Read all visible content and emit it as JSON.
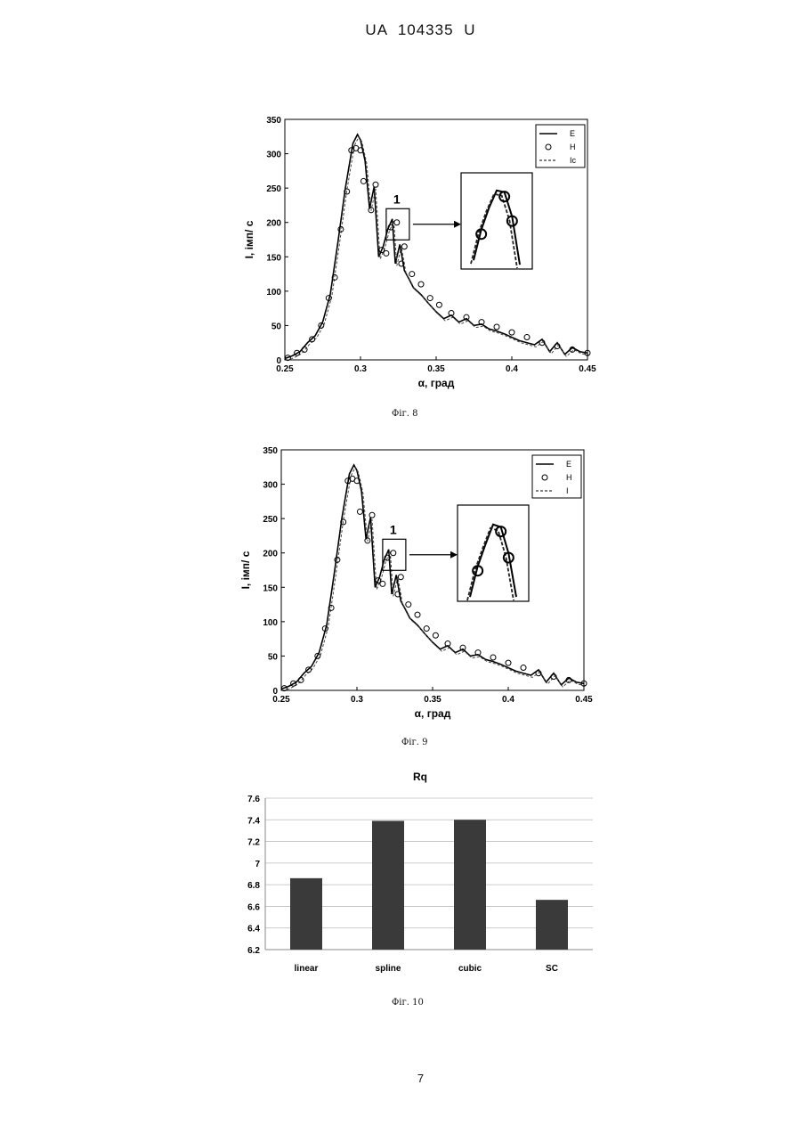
{
  "header": "UA   104335   U",
  "page_number": "7",
  "figures": [
    {
      "caption": "Фіг. 8",
      "chart_data": {
        "type": "line",
        "xlabel": "α, град",
        "ylabel": "I, імп/ с",
        "xlim": [
          0.25,
          0.45
        ],
        "ylim": [
          0,
          350
        ],
        "xticks": [
          "0.25",
          "0.3",
          "0.35",
          "0.4",
          "0.45"
        ],
        "yticks": [
          "0",
          "50",
          "100",
          "150",
          "200",
          "250",
          "300",
          "350"
        ],
        "legend": {
          "position": "top-right",
          "entries": [
            "E",
            "H",
            "Ic"
          ]
        },
        "annotation": "1",
        "series": [
          {
            "name": "E",
            "style": "solid",
            "x": [
              0.25,
              0.255,
              0.26,
              0.265,
              0.27,
              0.275,
              0.28,
              0.285,
              0.29,
              0.295,
              0.298,
              0.3,
              0.303,
              0.306,
              0.309,
              0.312,
              0.315,
              0.318,
              0.321,
              0.323,
              0.326,
              0.329,
              0.332,
              0.335,
              0.34,
              0.345,
              0.35,
              0.355,
              0.36,
              0.365,
              0.37,
              0.375,
              0.38,
              0.385,
              0.39,
              0.395,
              0.4,
              0.405,
              0.41,
              0.415,
              0.42,
              0.425,
              0.43,
              0.435,
              0.44,
              0.445,
              0.45
            ],
            "y": [
              2,
              6,
              12,
              25,
              35,
              55,
              95,
              170,
              250,
              315,
              328,
              320,
              290,
              220,
              252,
              150,
              165,
              190,
              205,
              140,
              168,
              130,
              118,
              105,
              95,
              82,
              70,
              60,
              65,
              55,
              60,
              50,
              52,
              45,
              42,
              38,
              33,
              28,
              25,
              22,
              30,
              12,
              25,
              8,
              18,
              12,
              10
            ]
          }
        ],
        "markers": {
          "name": "H",
          "x": [
            0.252,
            0.258,
            0.263,
            0.268,
            0.274,
            0.279,
            0.283,
            0.287,
            0.291,
            0.294,
            0.297,
            0.3,
            0.302,
            0.307,
            0.31,
            0.314,
            0.317,
            0.32,
            0.324,
            0.327,
            0.329,
            0.334,
            0.34,
            0.346,
            0.352,
            0.36,
            0.37,
            0.38,
            0.39,
            0.4,
            0.41,
            0.42,
            0.43,
            0.44,
            0.45
          ],
          "y": [
            3,
            10,
            15,
            30,
            50,
            90,
            120,
            190,
            245,
            305,
            308,
            305,
            260,
            218,
            255,
            160,
            155,
            193,
            200,
            140,
            165,
            125,
            110,
            90,
            80,
            68,
            62,
            55,
            48,
            40,
            33,
            25,
            20,
            15,
            10
          ]
        },
        "inset": {
          "series_x": [
            0,
            1,
            2,
            3,
            4,
            5,
            6
          ],
          "series_y": [
            10,
            45,
            70,
            90,
            88,
            60,
            5
          ]
        }
      }
    },
    {
      "caption": "Фіг. 9",
      "chart_data": {
        "type": "line",
        "xlabel": "α, град",
        "ylabel": "I, імп/ с",
        "xlim": [
          0.25,
          0.45
        ],
        "ylim": [
          0,
          350
        ],
        "xticks": [
          "0.25",
          "0.3",
          "0.35",
          "0.4",
          "0.45"
        ],
        "yticks": [
          "0",
          "50",
          "100",
          "150",
          "200",
          "250",
          "300",
          "350"
        ],
        "legend": {
          "position": "top-right",
          "entries": [
            "E",
            "H",
            "I"
          ]
        },
        "annotation": "1",
        "series": [
          {
            "name": "E",
            "style": "solid",
            "x": [
              0.25,
              0.255,
              0.26,
              0.265,
              0.27,
              0.275,
              0.28,
              0.285,
              0.29,
              0.295,
              0.298,
              0.3,
              0.303,
              0.306,
              0.309,
              0.312,
              0.315,
              0.318,
              0.321,
              0.323,
              0.326,
              0.329,
              0.332,
              0.335,
              0.34,
              0.345,
              0.35,
              0.355,
              0.36,
              0.365,
              0.37,
              0.375,
              0.38,
              0.385,
              0.39,
              0.395,
              0.4,
              0.405,
              0.41,
              0.415,
              0.42,
              0.425,
              0.43,
              0.435,
              0.44,
              0.445,
              0.45
            ],
            "y": [
              2,
              6,
              12,
              25,
              35,
              55,
              95,
              170,
              250,
              315,
              328,
              320,
              290,
              220,
              252,
              150,
              165,
              190,
              205,
              140,
              168,
              130,
              118,
              105,
              95,
              82,
              70,
              60,
              65,
              55,
              60,
              50,
              52,
              45,
              42,
              38,
              33,
              28,
              25,
              22,
              30,
              12,
              25,
              8,
              18,
              12,
              10
            ]
          }
        ],
        "markers": {
          "name": "H",
          "x": [
            0.252,
            0.258,
            0.263,
            0.268,
            0.274,
            0.279,
            0.283,
            0.287,
            0.291,
            0.294,
            0.297,
            0.3,
            0.302,
            0.307,
            0.31,
            0.314,
            0.317,
            0.32,
            0.324,
            0.327,
            0.329,
            0.334,
            0.34,
            0.346,
            0.352,
            0.36,
            0.37,
            0.38,
            0.39,
            0.4,
            0.41,
            0.42,
            0.43,
            0.44,
            0.45
          ],
          "y": [
            3,
            10,
            15,
            30,
            50,
            90,
            120,
            190,
            245,
            305,
            308,
            305,
            260,
            218,
            255,
            160,
            155,
            193,
            200,
            140,
            165,
            125,
            110,
            90,
            80,
            68,
            62,
            55,
            48,
            40,
            33,
            25,
            20,
            15,
            10
          ]
        },
        "inset": {
          "series_x": [
            0,
            1,
            2,
            3,
            4,
            5,
            6
          ],
          "series_y": [
            5,
            40,
            65,
            88,
            85,
            55,
            5
          ]
        }
      }
    },
    {
      "caption": "Фіг. 10",
      "chart_data": {
        "type": "bar",
        "title": "Rq",
        "categories": [
          "linear",
          "spline",
          "cubic",
          "SC"
        ],
        "values": [
          6.86,
          7.39,
          7.4,
          6.66
        ],
        "ylim": [
          6.2,
          7.6
        ],
        "yticks": [
          "6.2",
          "6.4",
          "6.6",
          "6.8",
          "7",
          "7.2",
          "7.4",
          "7.6"
        ],
        "grid": true,
        "bar_color": "#3a3a3a"
      }
    }
  ]
}
